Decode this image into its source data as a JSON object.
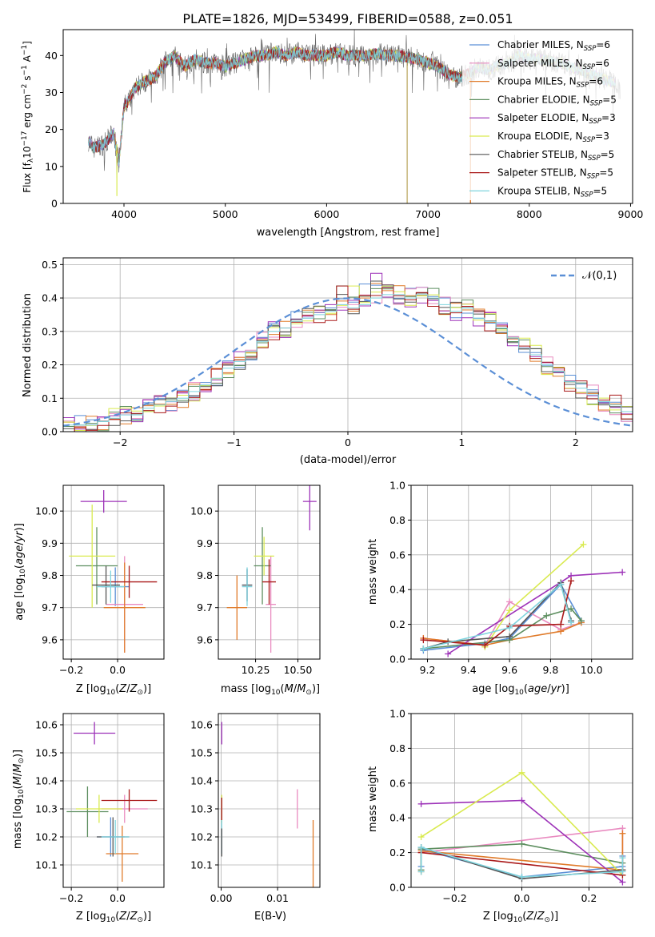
{
  "figure_title": "PLATE=1826, MJD=53499, FIBERID=0588, z=0.051",
  "colors": {
    "Chabrier MILES": "#5b8fd6",
    "Salpeter MILES": "#e98bc0",
    "Kroupa MILES": "#e07b2a",
    "Chabrier ELODIE": "#5e8f60",
    "Salpeter ELODIE": "#9d32b8",
    "Kroupa ELODIE": "#d9ea4f",
    "Chabrier STELIB": "#555555",
    "Salpeter STELIB": "#aa1a1a",
    "Kroupa STELIB": "#7fd4de"
  },
  "chart_data": [
    {
      "type": "line",
      "title": "PLATE=1826, MJD=53499, FIBERID=0588, z=0.051",
      "xlabel": "wavelength [Angstrom, rest frame]",
      "ylabel": "Flux [f_λ10^-17 erg cm^-2 s^-1 A^-1]",
      "xlim": [
        3400,
        9020
      ],
      "ylim": [
        0,
        47
      ],
      "xticks": [
        4000,
        5000,
        6000,
        7000,
        8000,
        9000
      ],
      "yticks": [
        0,
        10,
        20,
        30,
        40
      ],
      "grid": false,
      "legend_position": "right",
      "legend": [
        "Chabrier MILES, N_SSP=6",
        "Salpeter MILES, N_SSP=6",
        "Kroupa MILES, N_SSP=6",
        "Chabrier ELODIE, N_SSP=5",
        "Salpeter ELODIE, N_SSP=3",
        "Kroupa ELODIE, N_SSP=3",
        "Chabrier STELIB, N_SSP=5",
        "Salpeter STELIB, N_SSP=5",
        "Kroupa STELIB, N_SSP=5"
      ],
      "continuum": {
        "x": [
          3650,
          3700,
          3800,
          3900,
          3950,
          4000,
          4050,
          4100,
          4200,
          4300,
          4400,
          4500,
          4600,
          4700,
          4800,
          4900,
          5000,
          5100,
          5200,
          5300,
          5400,
          5500,
          5600,
          5700,
          5800,
          5900,
          6000,
          6100,
          6200,
          6300,
          6400,
          6500,
          6600,
          6700,
          6800,
          6900,
          7000,
          7100,
          7200,
          7300,
          7400,
          7500,
          7600,
          7700,
          7800,
          7900,
          8000,
          8100,
          8200,
          8300,
          8400,
          8500,
          8600,
          8700,
          8800,
          8900
        ],
        "y": [
          17,
          15,
          16,
          19,
          11,
          26,
          28,
          31,
          33,
          34,
          38,
          40,
          37,
          39,
          38,
          38,
          37,
          38,
          39,
          40,
          40,
          41,
          40,
          41,
          40,
          40,
          40,
          41,
          40,
          40,
          40,
          40.5,
          40,
          40,
          39.5,
          39,
          38,
          37,
          35,
          34,
          35,
          37,
          36,
          37.5,
          38,
          40,
          39,
          39,
          38.5,
          38,
          37,
          36,
          35,
          34,
          33,
          31
        ]
      }
    },
    {
      "type": "line",
      "xlabel": "(data-model)/error",
      "ylabel": "Normed distribution",
      "xlim": [
        -2.5,
        2.5
      ],
      "ylim": [
        0,
        0.52
      ],
      "xticks": [
        -2,
        -1,
        0,
        1,
        2
      ],
      "yticks": [
        0.0,
        0.1,
        0.2,
        0.3,
        0.4,
        0.5
      ],
      "grid": true,
      "legend_position": "upper-right",
      "legend": [
        "𝒩(0,1)"
      ],
      "reference_curve": "standard normal pdf",
      "histogram": {
        "bin_width": 0.1,
        "x_start": -2.5,
        "series": "Kroupa STELIB",
        "values": [
          0.02,
          0.02,
          0.02,
          0.03,
          0.04,
          0.05,
          0.05,
          0.07,
          0.08,
          0.09,
          0.1,
          0.12,
          0.14,
          0.16,
          0.19,
          0.21,
          0.24,
          0.27,
          0.3,
          0.31,
          0.33,
          0.34,
          0.35,
          0.36,
          0.38,
          0.37,
          0.38,
          0.4,
          0.41,
          0.41,
          0.4,
          0.41,
          0.4,
          0.38,
          0.36,
          0.37,
          0.34,
          0.33,
          0.31,
          0.28,
          0.25,
          0.23,
          0.2,
          0.18,
          0.15,
          0.13,
          0.11,
          0.09,
          0.08,
          0.06
        ]
      }
    },
    {
      "type": "scatter",
      "xlabel": "Z [log10(Z/Z⊙)]",
      "ylabel": "age  [log10(age/yr)]",
      "xlim": [
        -0.235,
        0.2
      ],
      "ylim": [
        9.54,
        10.08
      ],
      "xticks": [
        -0.2,
        0.0
      ],
      "yticks": [
        9.6,
        9.7,
        9.8,
        9.9,
        10.0
      ],
      "grid": true,
      "points": [
        {
          "series": "Chabrier MILES",
          "x": -0.01,
          "y": 9.765,
          "xerr": 0.06,
          "yerr": 0.06
        },
        {
          "series": "Salpeter MILES",
          "x": 0.03,
          "y": 9.71,
          "xerr": 0.08,
          "yerr": 0.15
        },
        {
          "series": "Kroupa MILES",
          "x": 0.03,
          "y": 9.7,
          "xerr": 0.09,
          "yerr": 0.14
        },
        {
          "series": "Chabrier ELODIE",
          "x": -0.09,
          "y": 9.83,
          "xerr": 0.09,
          "yerr": 0.12
        },
        {
          "series": "Salpeter ELODIE",
          "x": -0.06,
          "y": 10.03,
          "xerr": 0.1,
          "yerr": 0.035
        },
        {
          "series": "Kroupa ELODIE",
          "x": -0.11,
          "y": 9.86,
          "xerr": 0.1,
          "yerr": 0.16
        },
        {
          "series": "Chabrier STELIB",
          "x": -0.05,
          "y": 9.77,
          "xerr": 0.06,
          "yerr": 0.06
        },
        {
          "series": "Salpeter STELIB",
          "x": 0.05,
          "y": 9.78,
          "xerr": 0.12,
          "yerr": 0.05
        },
        {
          "series": "Kroupa STELIB",
          "x": -0.03,
          "y": 9.765,
          "xerr": 0.06,
          "yerr": 0.05
        }
      ]
    },
    {
      "type": "scatter",
      "xlabel": "mass [log10(M/M⊙)]",
      "ylabel": "",
      "xlim": [
        10.03,
        10.63
      ],
      "ylim": [
        9.54,
        10.08
      ],
      "xticks": [
        10.25,
        10.5
      ],
      "yticks": [
        9.6,
        9.7,
        9.8,
        9.9,
        10.0
      ],
      "grid": true,
      "points": [
        {
          "series": "Chabrier MILES",
          "x": 10.2,
          "y": 9.77,
          "xerr": 0.03,
          "yerr": 0.05
        },
        {
          "series": "Salpeter MILES",
          "x": 10.34,
          "y": 9.71,
          "xerr": 0.03,
          "yerr": 0.15
        },
        {
          "series": "Kroupa MILES",
          "x": 10.14,
          "y": 9.7,
          "xerr": 0.06,
          "yerr": 0.1
        },
        {
          "series": "Chabrier ELODIE",
          "x": 10.29,
          "y": 9.83,
          "xerr": 0.05,
          "yerr": 0.12
        },
        {
          "series": "Salpeter ELODIE",
          "x": 10.57,
          "y": 10.03,
          "xerr": 0.04,
          "yerr": 0.09
        },
        {
          "series": "Kroupa ELODIE",
          "x": 10.3,
          "y": 9.86,
          "xerr": 0.06,
          "yerr": 0.06
        },
        {
          "series": "Chabrier STELIB",
          "x": 10.2,
          "y": 9.77,
          "xerr": 0.03,
          "yerr": 0.05
        },
        {
          "series": "Salpeter STELIB",
          "x": 10.33,
          "y": 9.78,
          "xerr": 0.04,
          "yerr": 0.07
        },
        {
          "series": "Kroupa STELIB",
          "x": 10.2,
          "y": 9.765,
          "xerr": 0.03,
          "yerr": 0.06
        }
      ]
    },
    {
      "type": "line",
      "xlabel": "age  [log10(age/yr)]",
      "ylabel": "mass weight",
      "xlim": [
        9.12,
        10.2
      ],
      "ylim": [
        0,
        1.0
      ],
      "xticks": [
        9.2,
        9.4,
        9.6,
        9.8,
        10.0
      ],
      "yticks": [
        0.0,
        0.2,
        0.4,
        0.6,
        0.8,
        1.0
      ],
      "grid": true,
      "series": [
        {
          "series": "Chabrier MILES",
          "x": [
            9.18,
            9.48,
            9.6,
            9.85,
            9.95
          ],
          "y": [
            0.05,
            0.09,
            0.12,
            0.43,
            0.22
          ]
        },
        {
          "series": "Salpeter MILES",
          "x": [
            9.18,
            9.48,
            9.6,
            9.85,
            9.95
          ],
          "y": [
            0.12,
            0.08,
            0.33,
            0.17,
            0.21
          ]
        },
        {
          "series": "Kroupa MILES",
          "x": [
            9.18,
            9.48,
            9.6,
            9.85,
            9.95
          ],
          "y": [
            0.12,
            0.08,
            0.11,
            0.16,
            0.21
          ]
        },
        {
          "series": "Chabrier ELODIE",
          "x": [
            9.18,
            9.6,
            9.78,
            9.9,
            9.95
          ],
          "y": [
            0.06,
            0.11,
            0.25,
            0.29,
            0.22
          ]
        },
        {
          "series": "Salpeter ELODIE",
          "x": [
            9.3,
            9.9,
            10.15
          ],
          "y": [
            0.03,
            0.48,
            0.5
          ]
        },
        {
          "series": "Kroupa ELODIE",
          "x": [
            9.48,
            9.6,
            9.96
          ],
          "y": [
            0.07,
            0.28,
            0.66
          ]
        },
        {
          "series": "Chabrier STELIB",
          "x": [
            9.18,
            9.3,
            9.6,
            9.85,
            9.9
          ],
          "y": [
            0.06,
            0.1,
            0.13,
            0.44,
            0.22
          ]
        },
        {
          "series": "Salpeter STELIB",
          "x": [
            9.18,
            9.48,
            9.6,
            9.85,
            9.9
          ],
          "y": [
            0.11,
            0.08,
            0.19,
            0.2,
            0.45
          ]
        },
        {
          "series": "Kroupa STELIB",
          "x": [
            9.18,
            9.6,
            9.85,
            9.9
          ],
          "y": [
            0.06,
            0.18,
            0.43,
            0.21
          ]
        }
      ]
    },
    {
      "type": "scatter",
      "xlabel": "Z [log10(Z/Z⊙)]",
      "ylabel": "mass [log10(M/M⊙)]",
      "xlim": [
        -0.235,
        0.2
      ],
      "ylim": [
        10.02,
        10.64
      ],
      "xticks": [
        -0.2,
        0.0
      ],
      "yticks": [
        10.1,
        10.2,
        10.3,
        10.4,
        10.5,
        10.6
      ],
      "grid": true,
      "points": [
        {
          "series": "Chabrier MILES",
          "x": -0.03,
          "y": 10.2,
          "xerr": 0.06,
          "yerr": 0.07
        },
        {
          "series": "Salpeter MILES",
          "x": 0.03,
          "y": 10.3,
          "xerr": 0.1,
          "yerr": 0.05
        },
        {
          "series": "Kroupa MILES",
          "x": 0.02,
          "y": 10.14,
          "xerr": 0.07,
          "yerr": 0.1
        },
        {
          "series": "Chabrier ELODIE",
          "x": -0.13,
          "y": 10.29,
          "xerr": 0.09,
          "yerr": 0.09
        },
        {
          "series": "Salpeter ELODIE",
          "x": -0.1,
          "y": 10.57,
          "xerr": 0.09,
          "yerr": 0.04
        },
        {
          "series": "Kroupa ELODIE",
          "x": -0.08,
          "y": 10.3,
          "xerr": 0.1,
          "yerr": 0.05
        },
        {
          "series": "Chabrier STELIB",
          "x": -0.02,
          "y": 10.2,
          "xerr": 0.07,
          "yerr": 0.07
        },
        {
          "series": "Salpeter STELIB",
          "x": 0.05,
          "y": 10.33,
          "xerr": 0.12,
          "yerr": 0.04
        },
        {
          "series": "Kroupa STELIB",
          "x": -0.01,
          "y": 10.2,
          "xerr": 0.06,
          "yerr": 0.06
        }
      ]
    },
    {
      "type": "scatter",
      "xlabel": "E(B-V)",
      "ylabel": "",
      "xlim": [
        -0.0005,
        0.0175
      ],
      "ylim": [
        10.02,
        10.64
      ],
      "xticks": [
        0.0,
        0.01
      ],
      "yticks": [
        10.1,
        10.2,
        10.3,
        10.4,
        10.5,
        10.6
      ],
      "grid": true,
      "points": [
        {
          "series": "Salpeter MILES",
          "x": 0.0135,
          "y": 10.3,
          "xerr": 0,
          "yerr": 0.07
        },
        {
          "series": "Kroupa MILES",
          "x": 0.0163,
          "y": 10.14,
          "xerr": 0,
          "yerr": 0.12
        },
        {
          "series": "Salpeter ELODIE",
          "x": 0.0001,
          "y": 10.57,
          "xerr": 0,
          "yerr": 0.04
        },
        {
          "series": "Kroupa ELODIE",
          "x": 0.0001,
          "y": 10.3,
          "xerr": 0,
          "yerr": 0.05
        },
        {
          "series": "Salpeter STELIB",
          "x": 0.0001,
          "y": 10.3,
          "xerr": 0,
          "yerr": 0.04
        },
        {
          "series": "Kroupa STELIB",
          "x": 0.0001,
          "y": 10.2,
          "xerr": 0,
          "yerr": 0.06
        },
        {
          "series": "Chabrier STELIB",
          "x": 0.0001,
          "y": 10.18,
          "xerr": 0,
          "yerr": 0.05
        }
      ]
    },
    {
      "type": "line",
      "xlabel": "Z [log10(Z/Z⊙)]",
      "ylabel": "mass weight",
      "xlim": [
        -0.33,
        0.33
      ],
      "ylim": [
        0,
        1.0
      ],
      "xticks": [
        -0.2,
        0.0,
        0.2
      ],
      "yticks": [
        0.0,
        0.2,
        0.4,
        0.6,
        0.8,
        1.0
      ],
      "grid": true,
      "series": [
        {
          "series": "Chabrier MILES",
          "x": [
            -0.3,
            -0.3,
            0.0,
            0.3,
            0.3
          ],
          "y": [
            0.12,
            0.22,
            0.06,
            0.12,
            0.18
          ]
        },
        {
          "series": "Salpeter MILES",
          "x": [
            -0.3,
            0.3,
            0.3
          ],
          "y": [
            0.2,
            0.34,
            0.1
          ]
        },
        {
          "series": "Kroupa MILES",
          "x": [
            -0.3,
            -0.3,
            0.3,
            0.3
          ],
          "y": [
            0.09,
            0.21,
            0.1,
            0.31
          ]
        },
        {
          "series": "Chabrier ELODIE",
          "x": [
            -0.3,
            -0.3,
            0.0,
            0.3
          ],
          "y": [
            0.1,
            0.22,
            0.25,
            0.14
          ]
        },
        {
          "series": "Salpeter ELODIE",
          "x": [
            -0.3,
            0.0,
            0.3
          ],
          "y": [
            0.48,
            0.5,
            0.03
          ]
        },
        {
          "series": "Kroupa ELODIE",
          "x": [
            -0.3,
            0.0,
            0.3
          ],
          "y": [
            0.29,
            0.66,
            0.07
          ]
        },
        {
          "series": "Chabrier STELIB",
          "x": [
            -0.3,
            0.0,
            0.3
          ],
          "y": [
            0.23,
            0.05,
            0.1
          ]
        },
        {
          "series": "Salpeter STELIB",
          "x": [
            -0.3,
            0.3
          ],
          "y": [
            0.2,
            0.07
          ]
        },
        {
          "series": "Kroupa STELIB",
          "x": [
            -0.3,
            -0.3,
            0.0,
            0.3,
            0.3
          ],
          "y": [
            0.09,
            0.23,
            0.06,
            0.09,
            0.17
          ]
        }
      ]
    }
  ]
}
